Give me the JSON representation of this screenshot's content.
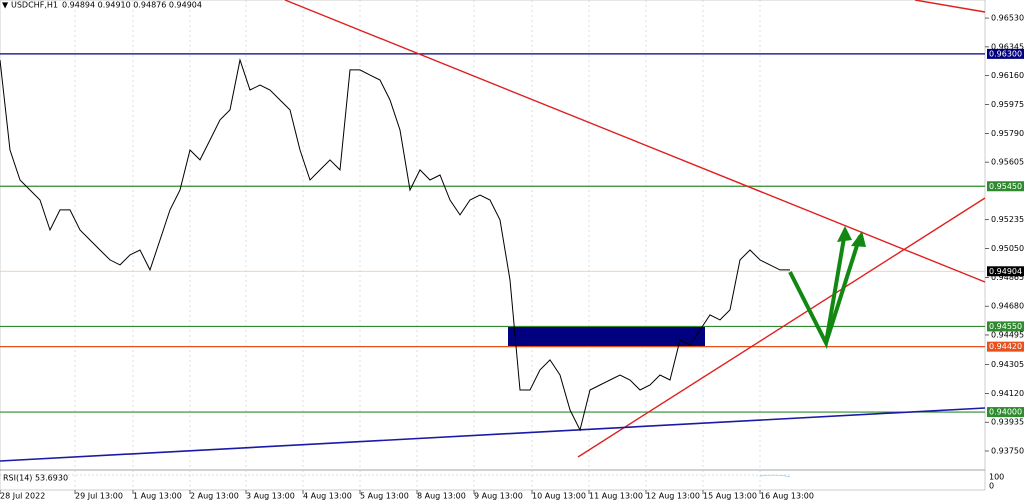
{
  "chart_data": {
    "type": "line",
    "symbol": "USDCHF,H1",
    "quote": "0.94894 0.94910 0.94876 0.94904",
    "indicator": "RSI(14) 53.6930",
    "indicator_ticks": [
      "100",
      "0"
    ],
    "xlim": [
      0,
      98.5
    ],
    "ylim": [
      0.93628,
      0.96646
    ],
    "xticks": [
      {
        "value": 0,
        "label": "28 Jul 2022"
      },
      {
        "value": 7.5,
        "label": "29 Jul 13:00"
      },
      {
        "value": 13.3,
        "label": "1 Aug 13:00"
      },
      {
        "value": 19,
        "label": "2 Aug 13:00"
      },
      {
        "value": 24.6,
        "label": "3 Aug 13:00"
      },
      {
        "value": 30.3,
        "label": "4 Aug 13:00"
      },
      {
        "value": 36,
        "label": "5 Aug 13:00"
      },
      {
        "value": 41.7,
        "label": "8 Aug 13:00"
      },
      {
        "value": 47.4,
        "label": "9 Aug 13:00"
      },
      {
        "value": 53.2,
        "label": "10 Aug 13:00"
      },
      {
        "value": 58.9,
        "label": "11 Aug 13:00"
      },
      {
        "value": 64.6,
        "label": "12 Aug 13:00"
      },
      {
        "value": 70.3,
        "label": "15 Aug 13:00"
      },
      {
        "value": 76,
        "label": "16 Aug 13:00"
      }
    ],
    "yticks": [
      {
        "value": 0.9653,
        "label": "0.96530"
      },
      {
        "value": 0.96345,
        "label": "0.96345"
      },
      {
        "value": 0.9616,
        "label": "0.96160"
      },
      {
        "value": 0.95975,
        "label": "0.95975"
      },
      {
        "value": 0.9579,
        "label": "0.95790"
      },
      {
        "value": 0.95605,
        "label": "0.95605"
      },
      {
        "value": 0.95235,
        "label": "0.95235"
      },
      {
        "value": 0.9505,
        "label": "0.95050"
      },
      {
        "value": 0.94865,
        "label": "0.94865"
      },
      {
        "value": 0.9468,
        "label": "0.94680"
      },
      {
        "value": 0.94495,
        "label": "0.94495"
      },
      {
        "value": 0.94305,
        "label": "0.94305"
      },
      {
        "value": 0.9412,
        "label": "0.94120"
      },
      {
        "value": 0.93935,
        "label": "0.93935"
      },
      {
        "value": 0.9375,
        "label": "0.93750"
      }
    ],
    "levels": [
      {
        "value": 0.963,
        "label": "0.96300",
        "color": "#000080"
      },
      {
        "value": 0.9545,
        "label": "0.95450",
        "color": "#2e8b2e"
      },
      {
        "value": 0.94904,
        "label": "0.94904",
        "color": "#000000"
      },
      {
        "value": 0.9455,
        "label": "0.94550",
        "color": "#2e8b2e"
      },
      {
        "value": 0.9442,
        "label": "0.94420",
        "color": "#e8511c"
      },
      {
        "value": 0.94,
        "label": "0.94000",
        "color": "#2e8b2e"
      }
    ],
    "series": [
      {
        "name": "USDCHF",
        "color": "#000000",
        "x": [
          0,
          1,
          2,
          3,
          4,
          5,
          6,
          7,
          8,
          9,
          10,
          11,
          12,
          13,
          14,
          15,
          16,
          17,
          18,
          19,
          20,
          21,
          22,
          23,
          24,
          25,
          26,
          27,
          28,
          29,
          30,
          31,
          32,
          33,
          34,
          35,
          36,
          37,
          38,
          39,
          40,
          41,
          42,
          43,
          44,
          45,
          46,
          47,
          48,
          49,
          50,
          51,
          52,
          53,
          54,
          55,
          56,
          57,
          58,
          59,
          60,
          61,
          62,
          63,
          64,
          65,
          66,
          67,
          68,
          69,
          70,
          71,
          72,
          73,
          74,
          75,
          76,
          77,
          78,
          79
        ],
        "values": [
          0.96261,
          0.95683,
          0.9549,
          0.95426,
          0.95362,
          0.95169,
          0.95298,
          0.95298,
          0.95169,
          0.95105,
          0.95041,
          0.94977,
          0.94945,
          0.95009,
          0.95041,
          0.94913,
          0.95105,
          0.95298,
          0.95426,
          0.95683,
          0.95619,
          0.95747,
          0.95876,
          0.9594,
          0.96261,
          0.96068,
          0.961,
          0.96068,
          0.96004,
          0.9594,
          0.95683,
          0.9549,
          0.95555,
          0.95619,
          0.95555,
          0.96197,
          0.96197,
          0.96164,
          0.96132,
          0.96004,
          0.95811,
          0.95426,
          0.95555,
          0.9549,
          0.95522,
          0.95362,
          0.95266,
          0.95362,
          0.95394,
          0.95362,
          0.95234,
          0.94848,
          0.94142,
          0.94142,
          0.94271,
          0.94335,
          0.94238,
          0.94014,
          0.93885,
          0.94142,
          0.94174,
          0.94206,
          0.94238,
          0.94206,
          0.94142,
          0.94174,
          0.94238,
          0.94206,
          0.94463,
          0.94431,
          0.94527,
          0.94624,
          0.94592,
          0.94656,
          0.94977,
          0.95041,
          0.94977,
          0.94945,
          0.94913,
          0.94913
        ]
      }
    ]
  }
}
